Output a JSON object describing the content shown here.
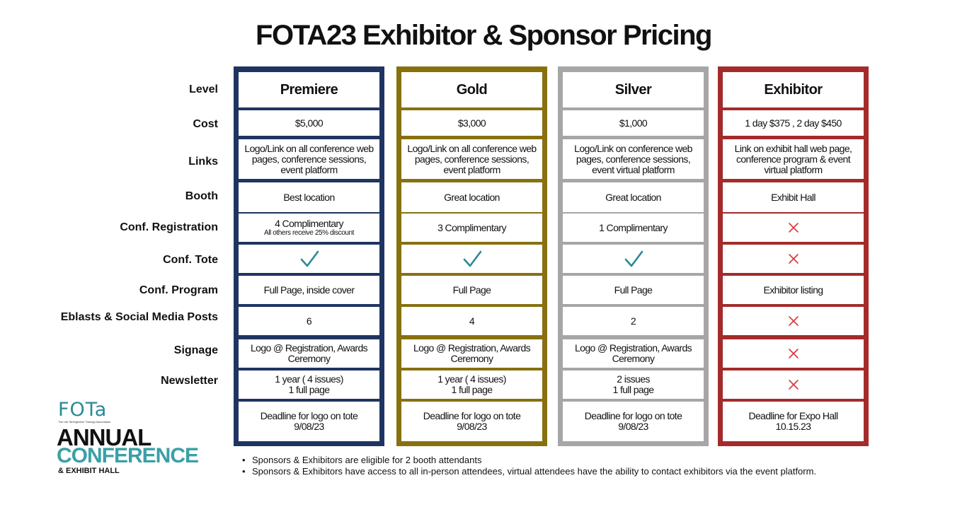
{
  "title": "FOTA23  Exhibitor & Sponsor Pricing",
  "row_labels": [
    "Level",
    "Cost",
    "Links",
    "Booth",
    "Conf. Registration",
    "Conf. Tote",
    "Conf. Program",
    "Eblasts & Social Media Posts",
    "Signage",
    "Newsletter"
  ],
  "tiers": [
    {
      "name": "Premiere",
      "color": "#1f3461",
      "cost": "$5,000",
      "links": "Logo/Link on all conference web pages, conference sessions, event platform",
      "booth": "Best location",
      "registration": "4 Complimentary",
      "registration_note": "All others receive 25% discount",
      "tote": "check",
      "program": "Full Page, inside cover",
      "eblasts": "6",
      "signage": "Logo @ Registration, Awards Ceremony",
      "newsletter_line1": "1 year ( 4 issues)",
      "newsletter_line2": "1 full page",
      "deadline_line1": "Deadline for logo on tote",
      "deadline_line2": "9/08/23"
    },
    {
      "name": "Gold",
      "color": "#87710f",
      "cost": "$3,000",
      "links": "Logo/Link on all conference web pages, conference sessions, event platform",
      "booth": "Great location",
      "registration": "3 Complimentary",
      "tote": "check",
      "program": "Full Page",
      "eblasts": "4",
      "signage": "Logo @ Registration, Awards Ceremony",
      "newsletter_line1": "1 year ( 4 issues)",
      "newsletter_line2": "1 full page",
      "deadline_line1": "Deadline for logo on tote",
      "deadline_line2": "9/08/23"
    },
    {
      "name": "Silver",
      "color": "#a6a6a6",
      "cost": "$1,000",
      "links": "Logo/Link on conference web pages, conference sessions, event virtual platform",
      "booth": "Great location",
      "registration": "1 Complimentary",
      "tote": "check",
      "program": "Full Page",
      "eblasts": "2",
      "signage": "Logo @ Registration, Awards Ceremony",
      "newsletter_line1": "2 issues",
      "newsletter_line2": "1 full page",
      "deadline_line1": "Deadline for logo on tote",
      "deadline_line2": "9/08/23"
    },
    {
      "name": "Exhibitor",
      "color": "#a32b2b",
      "cost": "1 day  $375 ,  2 day $450",
      "links": "Link on exhibit hall web page, conference program & event virtual platform",
      "booth": "Exhibit Hall",
      "registration": "x",
      "tote": "x",
      "program": "Exhibitor listing",
      "eblasts": "x",
      "signage": "x",
      "newsletter": "x",
      "deadline_line1": "Deadline for Expo Hall",
      "deadline_line2": "10.15.23"
    }
  ],
  "notes": [
    "Sponsors & Exhibitors are eligible for 2 booth attendants",
    "Sponsors & Exhibitors have access to all in-person attendees, virtual attendees have the ability to contact exhibitors via the event platform."
  ],
  "logo": {
    "mark": "FOTa",
    "tagline": "The Life Strengthens Therapy Association",
    "line1": "ANNUAL",
    "line2": "CONFERENCE",
    "line3": "& EXHIBIT HALL"
  },
  "colors": {
    "check": "#2a8a96",
    "x": "#d9373a"
  }
}
